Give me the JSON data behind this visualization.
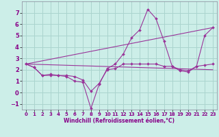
{
  "xlabel": "Windchill (Refroidissement éolien,°C)",
  "background_color": "#cceee8",
  "grid_color": "#aad4ce",
  "line_color": "#993399",
  "xlim": [
    -0.5,
    23.5
  ],
  "ylim": [
    -1.5,
    8.0
  ],
  "xticks": [
    0,
    1,
    2,
    3,
    4,
    5,
    6,
    7,
    8,
    9,
    10,
    11,
    12,
    13,
    14,
    15,
    16,
    17,
    18,
    19,
    20,
    21,
    22,
    23
  ],
  "yticks": [
    -1,
    0,
    1,
    2,
    3,
    4,
    5,
    6,
    7
  ],
  "series": [
    {
      "x": [
        0,
        1,
        2,
        3,
        4,
        5,
        6,
        7,
        8,
        9,
        10,
        11,
        12,
        13,
        14,
        15,
        16,
        17,
        18,
        19,
        20,
        21,
        22,
        23
      ],
      "y": [
        2.5,
        2.2,
        1.5,
        1.5,
        1.5,
        1.4,
        1.0,
        0.9,
        -1.4,
        0.7,
        2.1,
        2.5,
        3.4,
        4.8,
        5.5,
        7.3,
        6.5,
        4.5,
        2.3,
        1.9,
        1.8,
        2.3,
        5.0,
        5.7
      ]
    },
    {
      "x": [
        0,
        1,
        2,
        3,
        4,
        5,
        6,
        7,
        8,
        9,
        10,
        11,
        12,
        13,
        14,
        15,
        16,
        17,
        18,
        19,
        20,
        21,
        22,
        23
      ],
      "y": [
        2.5,
        2.2,
        1.5,
        1.6,
        1.5,
        1.5,
        1.4,
        1.1,
        0.1,
        0.8,
        2.0,
        2.1,
        2.5,
        2.5,
        2.5,
        2.5,
        2.5,
        2.3,
        2.3,
        2.0,
        1.9,
        2.3,
        2.4,
        2.5
      ]
    },
    {
      "x": [
        0,
        23
      ],
      "y": [
        2.5,
        5.7
      ]
    },
    {
      "x": [
        0,
        23
      ],
      "y": [
        2.5,
        2.0
      ]
    }
  ]
}
